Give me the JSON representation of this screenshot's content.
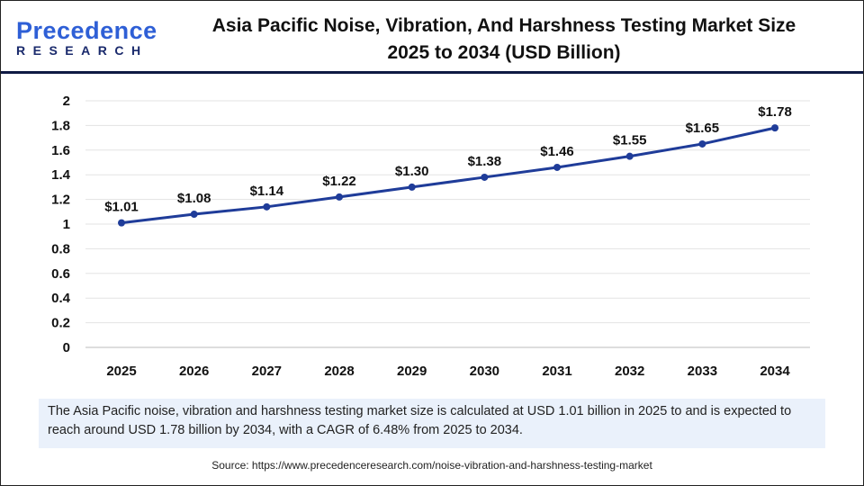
{
  "logo": {
    "line1a": "P",
    "line1b": "recedence",
    "line2": "RESEARCH"
  },
  "title_line1": "Asia Pacific Noise, Vibration, And Harshness Testing Market Size",
  "title_line2": "2025 to 2034 (USD Billion)",
  "chart_data": {
    "type": "line",
    "categories": [
      "2025",
      "2026",
      "2027",
      "2028",
      "2029",
      "2030",
      "2031",
      "2032",
      "2033",
      "2034"
    ],
    "values": [
      1.01,
      1.08,
      1.14,
      1.22,
      1.3,
      1.38,
      1.46,
      1.55,
      1.65,
      1.78
    ],
    "labels": [
      "$1.01",
      "$1.08",
      "$1.14",
      "$1.22",
      "$1.30",
      "$1.38",
      "$1.46",
      "$1.55",
      "$1.65",
      "$1.78"
    ],
    "yticks": [
      "0",
      "0.2",
      "0.4",
      "0.6",
      "0.8",
      "1",
      "1.2",
      "1.4",
      "1.6",
      "1.8",
      "2"
    ],
    "ylim": [
      0,
      2
    ],
    "grid": true,
    "color": "#1f3c99"
  },
  "note": "The Asia Pacific noise, vibration and harshness testing market  size is calculated at USD 1.01 billion in 2025 to and is expected to reach around USD 1.78 billion by 2034, with a CAGR of 6.48% from 2025 to 2034.",
  "source": "Source: https://www.precedenceresearch.com/noise-vibration-and-harshness-testing-market"
}
